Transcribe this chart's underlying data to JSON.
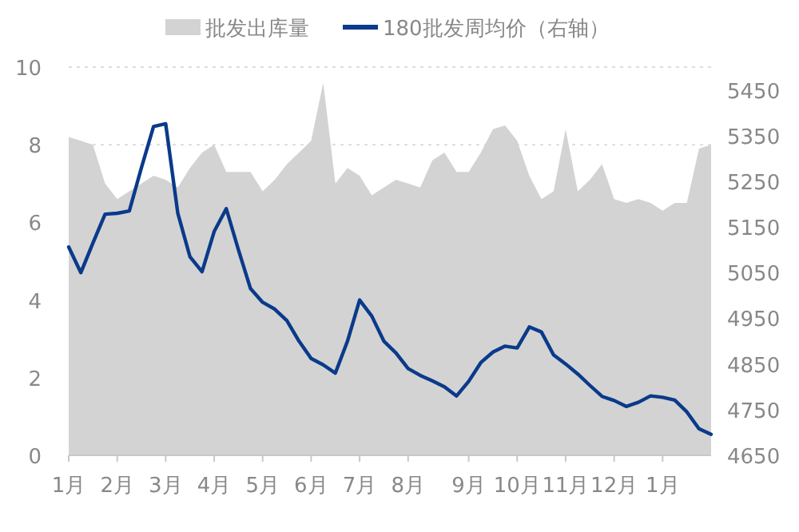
{
  "chart_data": {
    "type": "line",
    "legend": "top",
    "grid": "y",
    "categories": [
      "1月",
      null,
      null,
      null,
      "2月",
      null,
      null,
      null,
      "3月",
      null,
      null,
      null,
      "4月",
      null,
      null,
      null,
      "5月",
      null,
      null,
      null,
      "6月",
      null,
      null,
      null,
      "7月",
      null,
      null,
      null,
      "8月",
      null,
      null,
      null,
      null,
      "9月",
      null,
      null,
      null,
      "10月",
      null,
      null,
      null,
      "11月",
      null,
      null,
      null,
      "12月",
      null,
      null,
      null,
      "1月",
      null,
      null,
      null,
      null
    ],
    "ylim": [
      0,
      10
    ],
    "yticks": [
      0,
      2,
      4,
      6,
      8,
      10
    ],
    "y2lim": [
      4650,
      5500
    ],
    "y2ticks": [
      4650,
      4750,
      4850,
      4950,
      5050,
      5150,
      5250,
      5350,
      5450
    ],
    "series": [
      {
        "name": "批发出库量",
        "type": "area",
        "color": "#d3d3d3",
        "values": [
          8.2,
          8.1,
          8.0,
          7.0,
          6.6,
          6.8,
          7.0,
          7.2,
          7.1,
          6.9,
          7.4,
          7.8,
          8.0,
          7.3,
          7.3,
          7.3,
          6.8,
          7.1,
          7.5,
          7.8,
          8.1,
          9.6,
          7.0,
          7.4,
          7.2,
          6.7,
          6.9,
          7.1,
          7.0,
          6.9,
          7.6,
          7.8,
          7.3,
          7.3,
          7.8,
          8.4,
          8.5,
          8.1,
          7.2,
          6.6,
          6.8,
          8.4,
          6.8,
          7.1,
          7.5,
          6.6,
          6.5,
          6.6,
          6.5,
          6.3,
          6.5,
          6.5,
          7.9,
          8.0
        ]
      },
      {
        "name": "180批发周均价（右轴）",
        "axis": "y2",
        "color": "#0a3a8a",
        "values": [
          5106,
          5050,
          5115,
          5178,
          5180,
          5185,
          5280,
          5370,
          5376,
          5180,
          5085,
          5052,
          5140,
          5190,
          5100,
          5015,
          4985,
          4970,
          4945,
          4900,
          4862,
          4848,
          4830,
          4900,
          4990,
          4955,
          4900,
          4874,
          4840,
          4825,
          4813,
          4800,
          4780,
          4812,
          4853,
          4876,
          4889,
          4885,
          4931,
          4920,
          4870,
          4850,
          4828,
          4803,
          4779,
          4770,
          4757,
          4766,
          4780,
          4777,
          4771,
          4745,
          4708,
          4696
        ]
      }
    ]
  }
}
